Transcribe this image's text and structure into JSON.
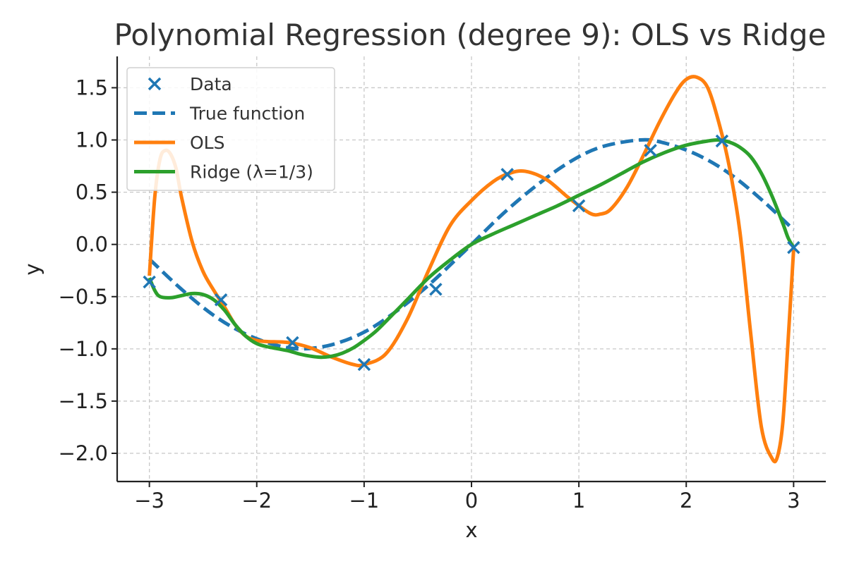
{
  "chart_data": {
    "type": "line",
    "title": "Polynomial Regression (degree 9): OLS vs Ridge",
    "xlabel": "x",
    "ylabel": "y",
    "xlim": [
      -3.3,
      3.3
    ],
    "ylim": [
      -2.27,
      1.8
    ],
    "x_ticks": [
      -3,
      -2,
      -1,
      0,
      1,
      2,
      3
    ],
    "x_tick_labels": [
      "−3",
      "−2",
      "−1",
      "0",
      "1",
      "2",
      "3"
    ],
    "y_ticks": [
      -2.0,
      -1.5,
      -1.0,
      -0.5,
      0.0,
      0.5,
      1.0,
      1.5
    ],
    "y_tick_labels": [
      "−2.0",
      "−1.5",
      "−1.0",
      "−0.5",
      "0.0",
      "0.5",
      "1.0",
      "1.5"
    ],
    "grid": true,
    "legend": {
      "placement": "top-left"
    },
    "series": [
      {
        "name": "Data",
        "kind": "scatter",
        "marker": "x",
        "color": "#1f77b4",
        "x": [
          -3.0,
          -2.333,
          -1.667,
          -1.0,
          -0.333,
          0.333,
          1.0,
          1.667,
          2.333,
          3.0
        ],
        "y": [
          -0.36,
          -0.53,
          -0.94,
          -1.15,
          -0.43,
          0.67,
          0.37,
          0.9,
          0.99,
          -0.03
        ]
      },
      {
        "name": "True function",
        "kind": "line",
        "style": "dashed",
        "color": "#1f77b4",
        "x": [
          -3.0,
          -2.7,
          -2.4,
          -2.1,
          -1.8,
          -1.5708,
          -1.3,
          -1.0,
          -0.7,
          -0.4,
          -0.1,
          0.0,
          0.3,
          0.6,
          0.9,
          1.2,
          1.5708,
          1.8,
          2.1,
          2.4,
          2.7,
          3.0
        ],
        "y": [
          -0.14,
          -0.43,
          -0.68,
          -0.86,
          -0.97,
          -1.0,
          -0.96,
          -0.84,
          -0.64,
          -0.39,
          -0.1,
          0.0,
          0.3,
          0.56,
          0.78,
          0.93,
          1.0,
          0.97,
          0.86,
          0.68,
          0.43,
          0.14
        ]
      },
      {
        "name": "OLS",
        "kind": "line",
        "style": "solid",
        "color": "#ff7f0e",
        "x": [
          -3.0,
          -2.95,
          -2.9,
          -2.85,
          -2.8,
          -2.75,
          -2.7,
          -2.6,
          -2.5,
          -2.4,
          -2.3,
          -2.2,
          -2.1,
          -2.0,
          -1.9,
          -1.7,
          -1.5,
          -1.3,
          -1.1,
          -1.0,
          -0.8,
          -0.6,
          -0.4,
          -0.2,
          0.0,
          0.2,
          0.35,
          0.5,
          0.7,
          0.9,
          1.1,
          1.2,
          1.3,
          1.45,
          1.6,
          1.75,
          1.9,
          2.0,
          2.1,
          2.2,
          2.3,
          2.4,
          2.5,
          2.6,
          2.7,
          2.8,
          2.85,
          2.9,
          2.95,
          3.0
        ],
        "y": [
          -0.3,
          0.45,
          0.82,
          0.9,
          0.86,
          0.72,
          0.45,
          0.02,
          -0.26,
          -0.44,
          -0.6,
          -0.77,
          -0.88,
          -0.92,
          -0.93,
          -0.94,
          -0.99,
          -1.08,
          -1.15,
          -1.15,
          -1.05,
          -0.72,
          -0.25,
          0.18,
          0.42,
          0.6,
          0.68,
          0.7,
          0.62,
          0.45,
          0.3,
          0.29,
          0.34,
          0.55,
          0.85,
          1.17,
          1.45,
          1.58,
          1.6,
          1.5,
          1.18,
          0.75,
          0.12,
          -0.85,
          -1.75,
          -2.05,
          -2.03,
          -1.7,
          -0.9,
          -0.05
        ]
      },
      {
        "name": "Ridge (λ=1/3)",
        "kind": "line",
        "style": "solid",
        "color": "#2ca02c",
        "x": [
          -3.0,
          -2.95,
          -2.9,
          -2.8,
          -2.7,
          -2.6,
          -2.5,
          -2.4,
          -2.3,
          -2.2,
          -2.1,
          -2.0,
          -1.9,
          -1.8,
          -1.7,
          -1.6,
          -1.5,
          -1.4,
          -1.3,
          -1.2,
          -1.1,
          -1.0,
          -0.9,
          -0.8,
          -0.6,
          -0.4,
          -0.2,
          0.0,
          0.2,
          0.4,
          0.6,
          0.8,
          1.0,
          1.2,
          1.4,
          1.6,
          1.8,
          2.0,
          2.2,
          2.3,
          2.4,
          2.5,
          2.6,
          2.7,
          2.8,
          2.9,
          2.95,
          3.0
        ],
        "y": [
          -0.32,
          -0.44,
          -0.5,
          -0.51,
          -0.49,
          -0.47,
          -0.48,
          -0.53,
          -0.63,
          -0.77,
          -0.88,
          -0.95,
          -0.98,
          -1.0,
          -1.02,
          -1.05,
          -1.07,
          -1.08,
          -1.07,
          -1.04,
          -0.99,
          -0.92,
          -0.84,
          -0.74,
          -0.53,
          -0.32,
          -0.15,
          0.0,
          0.1,
          0.19,
          0.28,
          0.37,
          0.47,
          0.57,
          0.68,
          0.79,
          0.88,
          0.95,
          0.99,
          1.0,
          0.98,
          0.93,
          0.84,
          0.68,
          0.46,
          0.2,
          0.06,
          -0.03
        ]
      }
    ]
  }
}
